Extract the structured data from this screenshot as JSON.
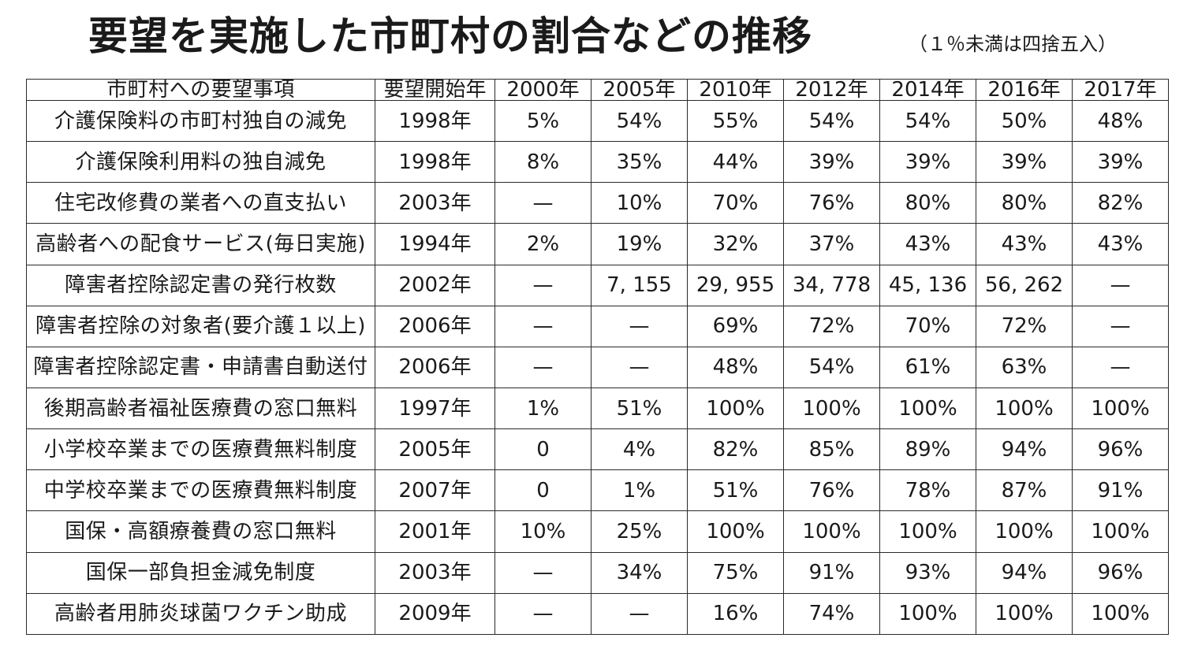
{
  "title": "要望を実施した市町村の割合などの推移",
  "note": "（１％未満は四捨五入）",
  "table": {
    "headers": [
      "市町村への要望事項",
      "要望開始年",
      "2000年",
      "2005年",
      "2010年",
      "2012年",
      "2014年",
      "2016年",
      "2017年"
    ],
    "rows": [
      [
        "介護保険料の市町村独自の減免",
        "1998年",
        "5%",
        "54%",
        "55%",
        "54%",
        "54%",
        "50%",
        "48%"
      ],
      [
        "介護保険利用料の独自減免",
        "1998年",
        "8%",
        "35%",
        "44%",
        "39%",
        "39%",
        "39%",
        "39%"
      ],
      [
        "住宅改修費の業者への直支払い",
        "2003年",
        "—",
        "10%",
        "70%",
        "76%",
        "80%",
        "80%",
        "82%"
      ],
      [
        "高齢者への配食サービス(毎日実施)",
        "1994年",
        "2%",
        "19%",
        "32%",
        "37%",
        "43%",
        "43%",
        "43%"
      ],
      [
        "障害者控除認定書の発行枚数",
        "2002年",
        "—",
        "7, 155",
        "29, 955",
        "34, 778",
        "45, 136",
        "56, 262",
        "—"
      ],
      [
        "障害者控除の対象者(要介護１以上)",
        "2006年",
        "—",
        "—",
        "69%",
        "72%",
        "70%",
        "72%",
        "—"
      ],
      [
        "障害者控除認定書・申請書自動送付",
        "2006年",
        "—",
        "—",
        "48%",
        "54%",
        "61%",
        "63%",
        "—"
      ],
      [
        "後期高齢者福祉医療費の窓口無料",
        "1997年",
        "1%",
        "51%",
        "100%",
        "100%",
        "100%",
        "100%",
        "100%"
      ],
      [
        "小学校卒業までの医療費無料制度",
        "2005年",
        "0",
        "4%",
        "82%",
        "85%",
        "89%",
        "94%",
        "96%"
      ],
      [
        "中学校卒業までの医療費無料制度",
        "2007年",
        "0",
        "1%",
        "51%",
        "76%",
        "78%",
        "87%",
        "91%"
      ],
      [
        "国保・高額療養費の窓口無料",
        "2001年",
        "10%",
        "25%",
        "100%",
        "100%",
        "100%",
        "100%",
        "100%"
      ],
      [
        "国保一部負担金減免制度",
        "2003年",
        "—",
        "34%",
        "75%",
        "91%",
        "93%",
        "94%",
        "96%"
      ],
      [
        "高齢者用肺炎球菌ワクチン助成",
        "2009年",
        "—",
        "—",
        "16%",
        "74%",
        "100%",
        "100%",
        "100%"
      ]
    ]
  }
}
